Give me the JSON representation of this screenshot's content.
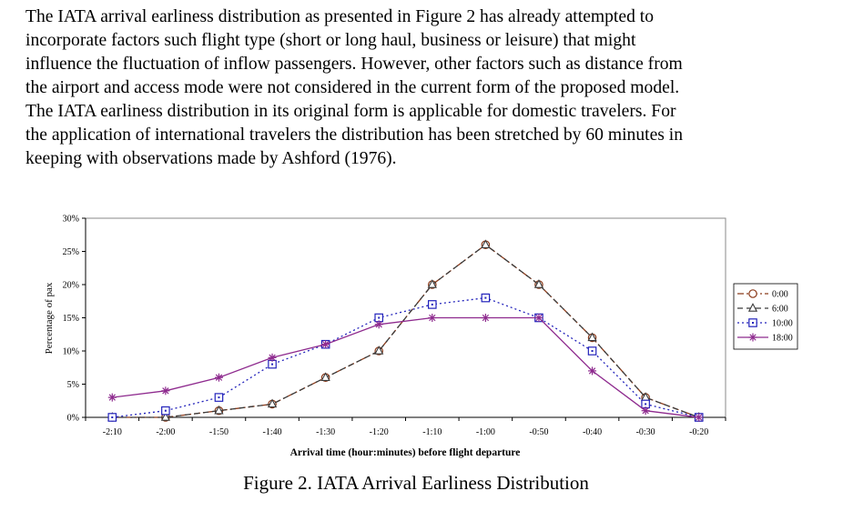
{
  "paragraph": [
    "The IATA arrival earliness distribution as presented in Figure 2 has already attempted to",
    "incorporate factors such flight type (short or long haul, business or leisure) that might",
    "influence the fluctuation of inflow passengers. However, other factors such as distance from",
    "the airport and access mode were not considered in the current form of the proposed model.",
    "The IATA earliness distribution in its original form is applicable for domestic travelers. For",
    "the application of international travelers the distribution has been stretched by 60 minutes in",
    "keeping with observations made by Ashford (1976)."
  ],
  "caption": "Figure 2. IATA Arrival Earliness Distribution",
  "chart_data": {
    "type": "line",
    "xlabel": "Arrival time (hour:minutes) before flight departure",
    "ylabel": "Percentage of pax",
    "categories": [
      "-2:10",
      "-2:00",
      "-1:50",
      "-1:40",
      "-1:30",
      "-1:20",
      "-1:10",
      "-1:00",
      "-0:50",
      "-0:40",
      "-0:30",
      "-0:20"
    ],
    "yticks": [
      "0%",
      "5%",
      "10%",
      "15%",
      "20%",
      "25%",
      "30%"
    ],
    "ylim": [
      0,
      30
    ],
    "grid": false,
    "legend_position": "right",
    "series": [
      {
        "name": "0:00",
        "values": [
          0,
          0,
          1,
          2,
          6,
          10,
          20,
          26,
          20,
          12,
          3,
          0
        ],
        "color": "#8B3A1A",
        "marker": "circle",
        "dash": "dashdot"
      },
      {
        "name": "6:00",
        "values": [
          0,
          0,
          1,
          2,
          6,
          10,
          20,
          26,
          20,
          12,
          3,
          0
        ],
        "color": "#3A3A3A",
        "marker": "triangle",
        "dash": "dash"
      },
      {
        "name": "10:00",
        "values": [
          0,
          1,
          3,
          8,
          11,
          15,
          17,
          18,
          15,
          10,
          2,
          0
        ],
        "color": "#2222BB",
        "marker": "square",
        "dash": "dot"
      },
      {
        "name": "18:00",
        "values": [
          3,
          4,
          6,
          9,
          11,
          14,
          15,
          15,
          15,
          7,
          1,
          0
        ],
        "color": "#8E2A8E",
        "marker": "star",
        "dash": "solid"
      }
    ]
  }
}
